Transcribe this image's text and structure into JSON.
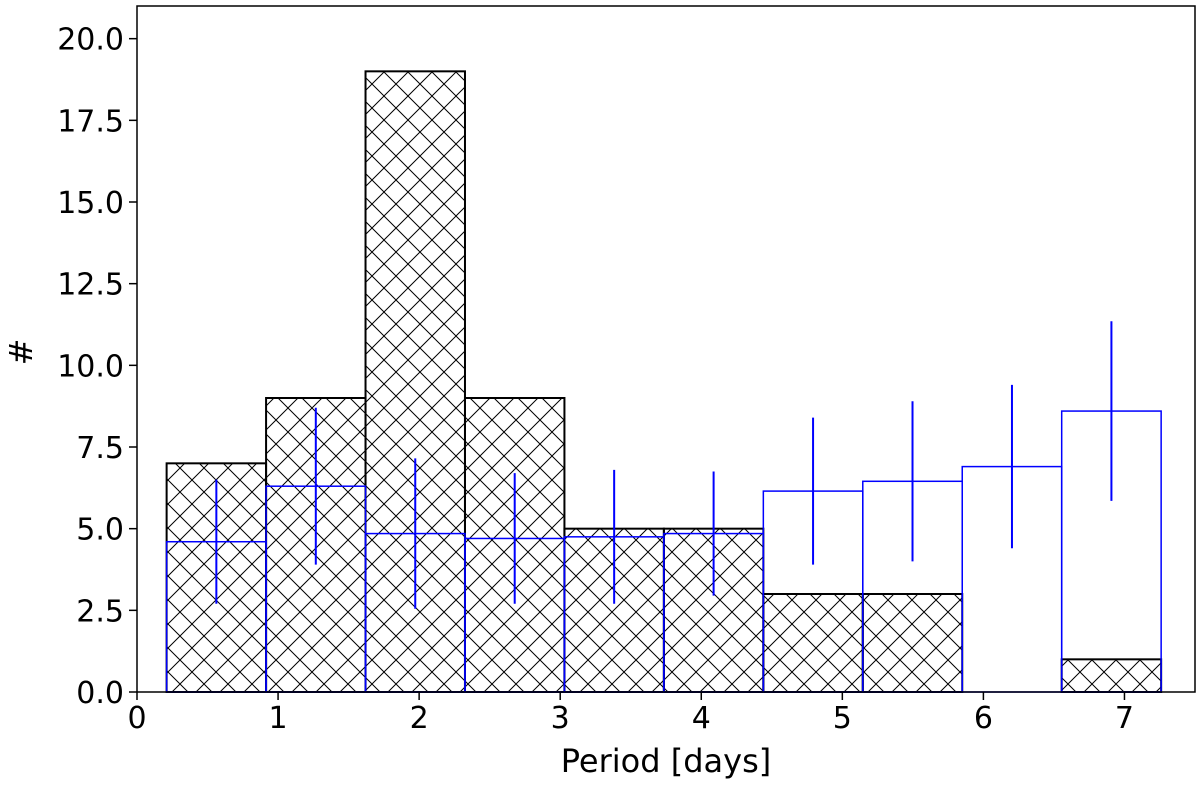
{
  "chart_data": {
    "type": "bar",
    "title": "",
    "xlabel": "Period [days]",
    "ylabel": "#",
    "xlim": [
      0,
      7.5
    ],
    "ylim": [
      0,
      21
    ],
    "xticks": [
      "0",
      "1",
      "2",
      "3",
      "4",
      "5",
      "6",
      "7"
    ],
    "yticks": [
      "0.0",
      "2.5",
      "5.0",
      "7.5",
      "10.0",
      "12.5",
      "15.0",
      "17.5",
      "20.0"
    ],
    "bin_edges": [
      0.21,
      0.915,
      1.62,
      2.325,
      3.03,
      3.735,
      4.44,
      5.145,
      5.85,
      6.555,
      7.26
    ],
    "series": [
      {
        "style": "hatched",
        "color": "#000000",
        "values": [
          7,
          9,
          19,
          9,
          5,
          5,
          3,
          3,
          0,
          1
        ]
      },
      {
        "style": "step-with-errorbars",
        "color": "#0000ff",
        "values": [
          4.6,
          6.3,
          4.85,
          4.7,
          4.75,
          4.85,
          6.15,
          6.45,
          6.9,
          8.6
        ],
        "errors": [
          1.9,
          2.4,
          2.3,
          2.0,
          2.05,
          1.9,
          2.25,
          2.45,
          2.5,
          2.75
        ]
      }
    ]
  }
}
